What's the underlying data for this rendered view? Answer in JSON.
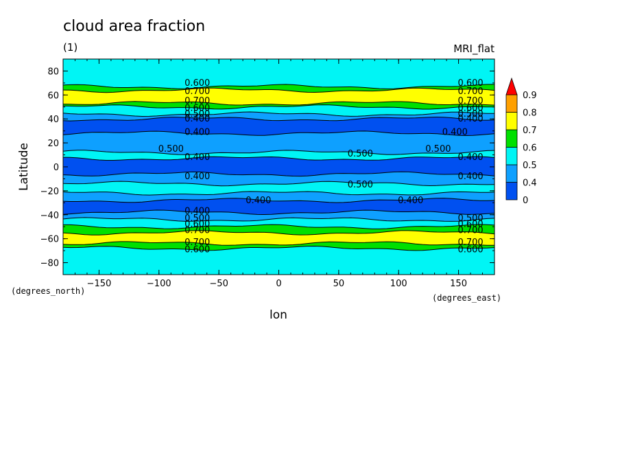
{
  "chart_data": {
    "type": "heatmap",
    "title": "cloud area fraction",
    "subtitle": "(1)",
    "model_label": "MRI_flat",
    "xlabel": "lon",
    "ylabel": "Latitude",
    "x_units": "(degrees_east)",
    "y_units": "(degrees_north)",
    "xlim": [
      -180,
      180
    ],
    "ylim": [
      -90,
      90
    ],
    "x_ticks": [
      -150,
      -100,
      -50,
      0,
      50,
      100,
      150
    ],
    "y_ticks": [
      80,
      60,
      40,
      20,
      0,
      -20,
      -40,
      -60,
      -80
    ],
    "colorbar": {
      "levels": [
        "0",
        "0.4",
        "0.5",
        "0.6",
        "0.7",
        "0.8",
        "0.9"
      ],
      "colors": [
        "#0050f0",
        "#0ea0ff",
        "#00f5f5",
        "#00e000",
        "#ffff00",
        "#ffa000",
        "#ff0000"
      ],
      "extend": "max"
    },
    "bands": [
      {
        "lat_top": 90,
        "lat_bottom": 67,
        "value": 0.55
      },
      {
        "lat_top": 67,
        "lat_bottom": 64,
        "value": 0.65
      },
      {
        "lat_top": 64,
        "lat_bottom": 53,
        "value": 0.75
      },
      {
        "lat_top": 53,
        "lat_bottom": 50,
        "value": 0.65
      },
      {
        "lat_top": 50,
        "lat_bottom": 44,
        "value": 0.55
      },
      {
        "lat_top": 44,
        "lat_bottom": 40,
        "value": 0.45
      },
      {
        "lat_top": 40,
        "lat_bottom": 28,
        "value": 0.35
      },
      {
        "lat_top": 28,
        "lat_bottom": 12,
        "value": 0.45
      },
      {
        "lat_top": 12,
        "lat_bottom": 7,
        "value": 0.55
      },
      {
        "lat_top": 7,
        "lat_bottom": -6,
        "value": 0.35
      },
      {
        "lat_top": -6,
        "lat_bottom": -14,
        "value": 0.45
      },
      {
        "lat_top": -14,
        "lat_bottom": -22,
        "value": 0.55
      },
      {
        "lat_top": -22,
        "lat_bottom": -28,
        "value": 0.45
      },
      {
        "lat_top": -28,
        "lat_bottom": -38,
        "value": 0.35
      },
      {
        "lat_top": -38,
        "lat_bottom": -44,
        "value": 0.45
      },
      {
        "lat_top": -44,
        "lat_bottom": -50,
        "value": 0.55
      },
      {
        "lat_top": -50,
        "lat_bottom": -55,
        "value": 0.65
      },
      {
        "lat_top": -55,
        "lat_bottom": -64,
        "value": 0.75
      },
      {
        "lat_top": -64,
        "lat_bottom": -68,
        "value": 0.65
      },
      {
        "lat_top": -68,
        "lat_bottom": -90,
        "value": 0.55
      }
    ],
    "contour_labels": [
      {
        "text": "0.600",
        "lon": -68,
        "lat": 70
      },
      {
        "text": "0.700",
        "lon": -68,
        "lat": 63
      },
      {
        "text": "0.700",
        "lon": -68,
        "lat": 55
      },
      {
        "text": "0.600",
        "lon": -68,
        "lat": 49
      },
      {
        "text": "0.500",
        "lon": -68,
        "lat": 44
      },
      {
        "text": "0.400",
        "lon": -68,
        "lat": 40
      },
      {
        "text": "0.400",
        "lon": -68,
        "lat": 29
      },
      {
        "text": "0.500",
        "lon": -90,
        "lat": 15
      },
      {
        "text": "0.400",
        "lon": -68,
        "lat": 8
      },
      {
        "text": "0.400",
        "lon": -68,
        "lat": -8
      },
      {
        "text": "0.400",
        "lon": -17,
        "lat": -28
      },
      {
        "text": "0.400",
        "lon": -68,
        "lat": -37
      },
      {
        "text": "0.500",
        "lon": -68,
        "lat": -43
      },
      {
        "text": "0.600",
        "lon": -68,
        "lat": -48
      },
      {
        "text": "0.700",
        "lon": -68,
        "lat": -53
      },
      {
        "text": "0.700",
        "lon": -68,
        "lat": -63
      },
      {
        "text": "0.600",
        "lon": -68,
        "lat": -69
      },
      {
        "text": "0.600",
        "lon": 160,
        "lat": 70
      },
      {
        "text": "0.700",
        "lon": 160,
        "lat": 63
      },
      {
        "text": "0.700",
        "lon": 160,
        "lat": 55
      },
      {
        "text": "0.600",
        "lon": 160,
        "lat": 49
      },
      {
        "text": "0.500",
        "lon": 160,
        "lat": 44
      },
      {
        "text": "0.400",
        "lon": 160,
        "lat": 40
      },
      {
        "text": "0.400",
        "lon": 147,
        "lat": 29
      },
      {
        "text": "0.500",
        "lon": 133,
        "lat": 15
      },
      {
        "text": "0.500",
        "lon": 68,
        "lat": 11
      },
      {
        "text": "0.400",
        "lon": 160,
        "lat": 8
      },
      {
        "text": "0.400",
        "lon": 160,
        "lat": -8
      },
      {
        "text": "0.500",
        "lon": 68,
        "lat": -15
      },
      {
        "text": "0.400",
        "lon": 110,
        "lat": -28
      },
      {
        "text": "0.500",
        "lon": 160,
        "lat": -43
      },
      {
        "text": "0.600",
        "lon": 160,
        "lat": -48
      },
      {
        "text": "0.700",
        "lon": 160,
        "lat": -53
      },
      {
        "text": "0.700",
        "lon": 160,
        "lat": -63
      },
      {
        "text": "0.600",
        "lon": 160,
        "lat": -69
      }
    ]
  }
}
